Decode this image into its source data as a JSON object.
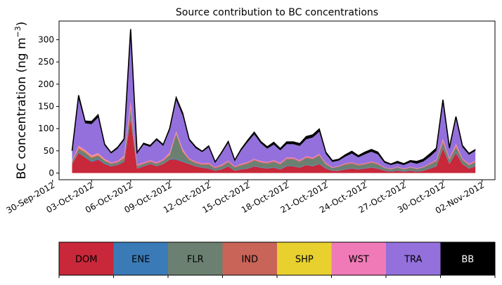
{
  "chart_data": {
    "type": "area",
    "stacked": true,
    "title": "Source contribution to BC concentrations",
    "ylabel_main": "BC concentration (ng m",
    "ylabel_exp": "−3",
    "ylabel_close": ")",
    "xlabel": "",
    "ylim": [
      -15,
      342
    ],
    "xlim": [
      "2012-09-30T12:00",
      "2012-11-03T00:00"
    ],
    "yticks": [
      0,
      50,
      100,
      150,
      200,
      250,
      300
    ],
    "ytick_labels": [
      "0",
      "50",
      "100",
      "150",
      "200",
      "250",
      "300"
    ],
    "xticks": [
      "2012-09-30",
      "2012-10-03",
      "2012-10-06",
      "2012-10-09",
      "2012-10-12",
      "2012-10-15",
      "2012-10-18",
      "2012-10-21",
      "2012-10-24",
      "2012-10-27",
      "2012-10-30",
      "2012-11-02"
    ],
    "xtick_labels": [
      "30-Sep-2012",
      "03-Oct-2012",
      "06-Oct-2012",
      "09-Oct-2012",
      "12-Oct-2012",
      "15-Oct-2012",
      "18-Oct-2012",
      "21-Oct-2012",
      "24-Oct-2012",
      "27-Oct-2012",
      "30-Oct-2012",
      "02-Nov-2012"
    ],
    "x": [
      "2012-10-01T12:00",
      "2012-10-02T00:00",
      "2012-10-02T12:00",
      "2012-10-03T00:00",
      "2012-10-03T12:00",
      "2012-10-04T00:00",
      "2012-10-04T12:00",
      "2012-10-05T00:00",
      "2012-10-05T12:00",
      "2012-10-06T00:00",
      "2012-10-06T12:00",
      "2012-10-07T00:00",
      "2012-10-07T12:00",
      "2012-10-08T00:00",
      "2012-10-08T12:00",
      "2012-10-09T00:00",
      "2012-10-09T12:00",
      "2012-10-10T00:00",
      "2012-10-10T12:00",
      "2012-10-11T00:00",
      "2012-10-11T12:00",
      "2012-10-12T00:00",
      "2012-10-12T12:00",
      "2012-10-13T00:00",
      "2012-10-13T12:00",
      "2012-10-14T00:00",
      "2012-10-14T12:00",
      "2012-10-15T00:00",
      "2012-10-15T12:00",
      "2012-10-16T00:00",
      "2012-10-16T12:00",
      "2012-10-17T00:00",
      "2012-10-17T12:00",
      "2012-10-18T00:00",
      "2012-10-18T12:00",
      "2012-10-19T00:00",
      "2012-10-19T12:00",
      "2012-10-20T00:00",
      "2012-10-20T12:00",
      "2012-10-21T00:00",
      "2012-10-21T12:00",
      "2012-10-22T00:00",
      "2012-10-22T12:00",
      "2012-10-23T00:00",
      "2012-10-23T12:00",
      "2012-10-24T00:00",
      "2012-10-24T12:00",
      "2012-10-25T00:00",
      "2012-10-25T12:00",
      "2012-10-26T00:00",
      "2012-10-26T12:00",
      "2012-10-27T00:00",
      "2012-10-27T12:00",
      "2012-10-28T00:00",
      "2012-10-28T12:00",
      "2012-10-29T00:00",
      "2012-10-29T12:00",
      "2012-10-30T00:00",
      "2012-10-30T12:00",
      "2012-10-31T00:00",
      "2012-10-31T12:00",
      "2012-11-01T00:00",
      "2012-11-01T12:00"
    ],
    "series": [
      {
        "name": "DOM",
        "color": "#c8283a",
        "values": [
          20,
          45,
          35,
          25,
          30,
          20,
          15,
          18,
          25,
          120,
          10,
          15,
          20,
          15,
          20,
          30,
          30,
          25,
          20,
          15,
          12,
          10,
          5,
          8,
          15,
          5,
          8,
          10,
          15,
          12,
          10,
          12,
          8,
          15,
          15,
          12,
          18,
          15,
          20,
          10,
          5,
          5,
          8,
          10,
          8,
          10,
          12,
          10,
          5,
          3,
          5,
          3,
          5,
          3,
          5,
          10,
          15,
          55,
          20,
          45,
          20,
          10,
          15
        ]
      },
      {
        "name": "ENE",
        "color": "#3a7bb7",
        "values": [
          1,
          2,
          2,
          2,
          2,
          2,
          1,
          1,
          2,
          3,
          1,
          1,
          1,
          1,
          1,
          1,
          2,
          2,
          1,
          1,
          1,
          1,
          1,
          1,
          1,
          1,
          1,
          1,
          1,
          1,
          1,
          1,
          1,
          1,
          1,
          1,
          1,
          1,
          1,
          1,
          1,
          1,
          1,
          1,
          1,
          1,
          1,
          1,
          1,
          1,
          1,
          1,
          1,
          1,
          1,
          1,
          1,
          2,
          1,
          2,
          1,
          1,
          1
        ]
      },
      {
        "name": "FLR",
        "color": "#6b8070",
        "values": [
          3,
          6,
          8,
          6,
          6,
          5,
          4,
          4,
          5,
          18,
          4,
          4,
          4,
          4,
          6,
          8,
          55,
          20,
          8,
          6,
          5,
          8,
          4,
          6,
          8,
          6,
          8,
          10,
          12,
          10,
          10,
          12,
          10,
          15,
          15,
          12,
          15,
          15,
          18,
          8,
          5,
          8,
          10,
          10,
          8,
          8,
          10,
          8,
          5,
          4,
          6,
          4,
          6,
          5,
          6,
          8,
          10,
          10,
          8,
          10,
          8,
          6,
          8
        ]
      },
      {
        "name": "IND",
        "color": "#c86458",
        "values": [
          2,
          4,
          3,
          3,
          3,
          2,
          2,
          2,
          3,
          8,
          2,
          2,
          2,
          2,
          2,
          3,
          3,
          3,
          2,
          2,
          2,
          2,
          2,
          2,
          2,
          2,
          2,
          2,
          2,
          2,
          2,
          2,
          2,
          2,
          2,
          2,
          2,
          2,
          2,
          2,
          1,
          1,
          2,
          2,
          2,
          2,
          2,
          2,
          1,
          1,
          1,
          1,
          1,
          1,
          1,
          2,
          2,
          5,
          2,
          4,
          2,
          2,
          2
        ]
      },
      {
        "name": "SHP",
        "color": "#e8d02e",
        "values": [
          0,
          1,
          1,
          1,
          1,
          1,
          0,
          0,
          1,
          1,
          0,
          0,
          0,
          0,
          0,
          1,
          1,
          1,
          0,
          0,
          0,
          0,
          0,
          0,
          0,
          0,
          0,
          0,
          0,
          0,
          0,
          0,
          0,
          0,
          0,
          0,
          0,
          0,
          0,
          0,
          0,
          0,
          0,
          0,
          0,
          0,
          0,
          0,
          0,
          0,
          0,
          0,
          0,
          0,
          0,
          0,
          0,
          1,
          0,
          1,
          0,
          0,
          0
        ]
      },
      {
        "name": "WST",
        "color": "#f07ab8",
        "values": [
          2,
          4,
          3,
          3,
          3,
          2,
          2,
          2,
          3,
          12,
          2,
          2,
          2,
          2,
          2,
          3,
          3,
          3,
          2,
          2,
          2,
          2,
          1,
          2,
          2,
          1,
          2,
          2,
          2,
          2,
          2,
          2,
          2,
          2,
          2,
          2,
          2,
          2,
          2,
          2,
          1,
          1,
          1,
          1,
          1,
          1,
          1,
          1,
          1,
          1,
          1,
          1,
          1,
          1,
          1,
          1,
          2,
          4,
          2,
          4,
          2,
          2,
          2
        ]
      },
      {
        "name": "TRA",
        "color": "#9370db",
        "values": [
          20,
          105,
          60,
          70,
          80,
          30,
          20,
          28,
          35,
          150,
          25,
          40,
          30,
          50,
          30,
          50,
          70,
          75,
          40,
          30,
          25,
          35,
          10,
          25,
          40,
          12,
          30,
          45,
          55,
          40,
          30,
          35,
          28,
          30,
          30,
          32,
          38,
          45,
          50,
          20,
          12,
          12,
          15,
          20,
          15,
          20,
          22,
          20,
          10,
          8,
          8,
          8,
          10,
          10,
          12,
          15,
          20,
          80,
          20,
          55,
          25,
          20,
          22
        ]
      },
      {
        "name": "BB",
        "color": "#000000",
        "values": [
          2,
          8,
          5,
          6,
          6,
          3,
          2,
          3,
          3,
          12,
          2,
          3,
          3,
          3,
          3,
          4,
          6,
          6,
          3,
          3,
          2,
          3,
          2,
          3,
          3,
          2,
          3,
          4,
          5,
          4,
          4,
          5,
          4,
          5,
          5,
          5,
          6,
          6,
          6,
          4,
          3,
          3,
          4,
          5,
          4,
          5,
          5,
          5,
          3,
          2,
          4,
          3,
          4,
          5,
          5,
          6,
          6,
          8,
          4,
          6,
          4,
          3,
          3
        ]
      }
    ]
  },
  "legend": {
    "entries": [
      {
        "name": "DOM",
        "color": "#c8283a",
        "text_color": "#000000"
      },
      {
        "name": "ENE",
        "color": "#3a7bb7",
        "text_color": "#000000"
      },
      {
        "name": "FLR",
        "color": "#6b8070",
        "text_color": "#000000"
      },
      {
        "name": "IND",
        "color": "#c86458",
        "text_color": "#000000"
      },
      {
        "name": "SHP",
        "color": "#e8d02e",
        "text_color": "#000000"
      },
      {
        "name": "WST",
        "color": "#f07ab8",
        "text_color": "#000000"
      },
      {
        "name": "TRA",
        "color": "#9370db",
        "text_color": "#000000"
      },
      {
        "name": "BB",
        "color": "#000000",
        "text_color": "#ffffff"
      }
    ]
  }
}
